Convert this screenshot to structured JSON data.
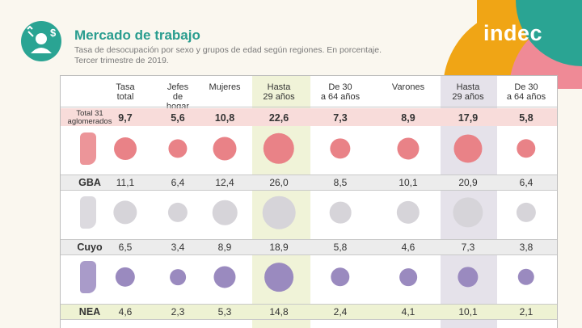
{
  "page": {
    "title": "Mercado de trabajo",
    "subtitle_line1": "Tasa de desocupación por sexo y grupos de edad según regiones. En porcentaje.",
    "subtitle_line2": "Tercer trimestre de 2019.",
    "logo": "indec"
  },
  "colors": {
    "accent_teal": "#2aa493",
    "orange": "#f0a515",
    "pink": "#ef8a96",
    "dot_total": "#e98287",
    "dot_gba": "#d6d4d9",
    "dot_nea": "#9a8abf",
    "band_green": "#f0f3d8",
    "band_violet": "#e5e2ea",
    "row_total": "#f8dcda",
    "row_grey": "#ececec",
    "row_green": "#eef2d3"
  },
  "table": {
    "headers": [
      {
        "l1": "Tasa",
        "l2": "total"
      },
      {
        "l1": "Jefes",
        "l2": "de",
        "l3": "hogar"
      },
      {
        "l1": "Mujeres"
      },
      {
        "l1": "Hasta",
        "l2": "29 años"
      },
      {
        "l1": "De 30",
        "l2": "a 64 años"
      },
      {
        "l1": "Varones"
      },
      {
        "l1": "Hasta",
        "l2": "29 años"
      },
      {
        "l1": "De 30",
        "l2": "a 64 años"
      }
    ],
    "total": {
      "label_l1": "Total 31",
      "label_l2": "aglomerados",
      "values": [
        "9,7",
        "5,6",
        "10,8",
        "22,6",
        "7,3",
        "8,9",
        "17,9",
        "5,8"
      ],
      "numbers": [
        9.7,
        5.6,
        10.8,
        22.6,
        7.3,
        8.9,
        17.9,
        5.8
      ]
    },
    "rows": [
      {
        "label": "GBA",
        "values": [
          "11,1",
          "6,4",
          "12,4",
          "26,0",
          "8,5",
          "10,1",
          "20,9",
          "6,4"
        ],
        "numbers": [
          11.1,
          6.4,
          12.4,
          26.0,
          8.5,
          10.1,
          20.9,
          6.4
        ]
      },
      {
        "label": "Cuyo",
        "values": [
          "6,5",
          "3,4",
          "8,9",
          "18,9",
          "5,8",
          "4,6",
          "7,3",
          "3,8"
        ],
        "numbers": [
          6.5,
          3.4,
          8.9,
          18.9,
          5.8,
          4.6,
          7.3,
          3.8
        ]
      },
      {
        "label": "NEA",
        "values": [
          "4,6",
          "2,3",
          "5,3",
          "14,8",
          "2,4",
          "4,1",
          "10,1",
          "2,1"
        ],
        "numbers": [
          4.6,
          2.3,
          5.3,
          14.8,
          2.4,
          4.1,
          10.1,
          2.1
        ]
      }
    ]
  }
}
